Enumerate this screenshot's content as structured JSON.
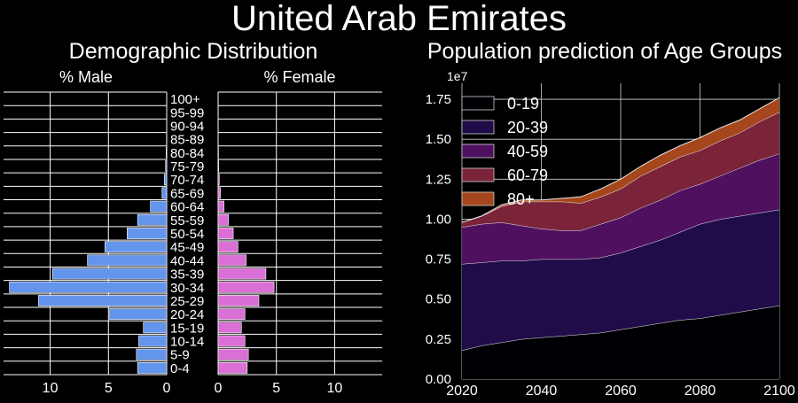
{
  "main_title": "United Arab Emirates",
  "colors": {
    "background": "#000000",
    "male": "#6495ED",
    "female": "#DA70D6",
    "age_0_19": "#000004",
    "age_20_39": "#1f0c48",
    "age_40_59": "#4f1060",
    "age_60_79": "#7a2339",
    "age_80_plus": "#a5461c"
  },
  "chart_data": [
    {
      "type": "bar",
      "orientation": "horizontal",
      "title": "Demographic Distribution",
      "male_label": "% Male",
      "female_label": "% Female",
      "categories": [
        "0-4",
        "5-9",
        "10-14",
        "15-19",
        "20-24",
        "25-29",
        "30-34",
        "35-39",
        "40-44",
        "45-49",
        "50-54",
        "55-59",
        "60-64",
        "65-69",
        "70-74",
        "75-79",
        "80-84",
        "85-89",
        "90-94",
        "95-99",
        "100+"
      ],
      "series": [
        {
          "name": "% Male",
          "values": [
            2.5,
            2.6,
            2.4,
            2.0,
            4.9,
            11.0,
            13.5,
            9.8,
            6.8,
            5.3,
            3.4,
            2.5,
            1.4,
            0.4,
            0.2,
            0.1,
            0.05,
            0.02,
            0.01,
            0.0,
            0.0
          ]
        },
        {
          "name": "% Female",
          "values": [
            2.5,
            2.6,
            2.3,
            2.0,
            2.3,
            3.5,
            4.8,
            4.1,
            2.4,
            1.7,
            1.3,
            0.9,
            0.5,
            0.2,
            0.1,
            0.05,
            0.03,
            0.01,
            0.0,
            0.0,
            0.0
          ]
        }
      ],
      "xlim": [
        0,
        14
      ],
      "male_ticks": [
        "10",
        "5",
        "0"
      ],
      "female_ticks": [
        "0",
        "5",
        "10"
      ],
      "grid": true
    },
    {
      "type": "area",
      "stacked": true,
      "title": "Population prediction of Age Groups",
      "scale_label": "1e7",
      "x": [
        2020,
        2025,
        2030,
        2035,
        2040,
        2045,
        2050,
        2055,
        2060,
        2065,
        2070,
        2075,
        2080,
        2085,
        2090,
        2095,
        2100
      ],
      "series": [
        {
          "name": "0-19",
          "values": [
            0.18,
            0.21,
            0.23,
            0.25,
            0.26,
            0.27,
            0.28,
            0.29,
            0.31,
            0.33,
            0.35,
            0.37,
            0.38,
            0.4,
            0.42,
            0.44,
            0.46
          ]
        },
        {
          "name": "20-39",
          "values": [
            0.54,
            0.52,
            0.51,
            0.49,
            0.49,
            0.48,
            0.47,
            0.47,
            0.48,
            0.5,
            0.52,
            0.55,
            0.59,
            0.6,
            0.6,
            0.6,
            0.6
          ]
        },
        {
          "name": "40-59",
          "values": [
            0.23,
            0.24,
            0.24,
            0.22,
            0.19,
            0.18,
            0.18,
            0.21,
            0.22,
            0.24,
            0.25,
            0.26,
            0.25,
            0.27,
            0.3,
            0.33,
            0.35
          ]
        },
        {
          "name": "60-79",
          "values": [
            0.03,
            0.05,
            0.1,
            0.15,
            0.17,
            0.18,
            0.17,
            0.17,
            0.18,
            0.2,
            0.21,
            0.21,
            0.21,
            0.22,
            0.22,
            0.24,
            0.26
          ]
        },
        {
          "name": "80+",
          "values": [
            0.0,
            0.0,
            0.01,
            0.01,
            0.01,
            0.02,
            0.04,
            0.05,
            0.06,
            0.06,
            0.07,
            0.07,
            0.08,
            0.08,
            0.08,
            0.08,
            0.09
          ]
        }
      ],
      "xticks": [
        2020,
        2040,
        2060,
        2080,
        2100
      ],
      "yticks": [
        "0.00",
        "0.25",
        "0.50",
        "0.75",
        "1.00",
        "1.25",
        "1.50",
        "1.75"
      ],
      "xlim": [
        2020,
        2100
      ],
      "ylim": [
        0,
        1.85
      ],
      "legend": "top-left",
      "grid": true
    }
  ]
}
